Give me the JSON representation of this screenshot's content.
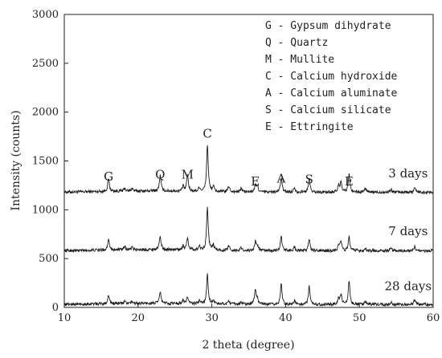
{
  "chart_data": {
    "type": "line",
    "xlabel": "2 theta (degree)",
    "ylabel": "Intensity (counts)",
    "xlim": [
      10,
      60
    ],
    "ylim": [
      0,
      3000
    ],
    "xticks": [
      10,
      20,
      30,
      40,
      50,
      60
    ],
    "yticks": [
      0,
      500,
      1000,
      1500,
      2000,
      2500,
      3000
    ],
    "grid": false,
    "legend_position": "top-right",
    "legend": [
      "G - Gypsum dihydrate",
      "Q - Quartz",
      "M - Mullite",
      "C - Calcium hydroxide",
      "A - Calcium aluminate",
      "S - Calcium silicate",
      "E - Ettringite"
    ],
    "peak_labels": [
      {
        "label": "G",
        "x": 16.0,
        "y": 1300
      },
      {
        "label": "Q",
        "x": 23.0,
        "y": 1320
      },
      {
        "label": "M",
        "x": 26.7,
        "y": 1320
      },
      {
        "label": "C",
        "x": 29.4,
        "y": 1740
      },
      {
        "label": "E",
        "x": 35.9,
        "y": 1250
      },
      {
        "label": "A",
        "x": 39.4,
        "y": 1280
      },
      {
        "label": "S",
        "x": 43.2,
        "y": 1270
      },
      {
        "label": "E",
        "x": 48.6,
        "y": 1250
      }
    ],
    "series": [
      {
        "name": "3 days",
        "baseline": 1180,
        "label_x": 56.6,
        "label_y": 1330,
        "peaks": [
          [
            16.0,
            130
          ],
          [
            18.2,
            30
          ],
          [
            19.2,
            30
          ],
          [
            23.0,
            160
          ],
          [
            26.1,
            50
          ],
          [
            26.7,
            170
          ],
          [
            28.3,
            40
          ],
          [
            29.4,
            480
          ],
          [
            30.2,
            50
          ],
          [
            32.3,
            60
          ],
          [
            34.0,
            40
          ],
          [
            35.9,
            70
          ],
          [
            36.2,
            60
          ],
          [
            39.4,
            150
          ],
          [
            41.2,
            50
          ],
          [
            43.2,
            140
          ],
          [
            47.2,
            70
          ],
          [
            47.5,
            90
          ],
          [
            48.6,
            180
          ],
          [
            50.8,
            40
          ],
          [
            54.3,
            30
          ],
          [
            57.5,
            50
          ]
        ]
      },
      {
        "name": "7 days",
        "baseline": 580,
        "label_x": 56.6,
        "label_y": 740,
        "peaks": [
          [
            16.0,
            120
          ],
          [
            18.2,
            30
          ],
          [
            19.2,
            25
          ],
          [
            23.0,
            140
          ],
          [
            26.1,
            40
          ],
          [
            26.7,
            130
          ],
          [
            28.3,
            40
          ],
          [
            29.4,
            440
          ],
          [
            30.2,
            50
          ],
          [
            32.3,
            50
          ],
          [
            34.0,
            30
          ],
          [
            35.9,
            90
          ],
          [
            36.2,
            50
          ],
          [
            39.4,
            150
          ],
          [
            41.2,
            40
          ],
          [
            43.2,
            120
          ],
          [
            47.2,
            60
          ],
          [
            47.5,
            90
          ],
          [
            48.6,
            140
          ],
          [
            50.8,
            30
          ],
          [
            54.3,
            25
          ],
          [
            57.5,
            40
          ]
        ]
      },
      {
        "name": "28 days",
        "baseline": 30,
        "label_x": 56.6,
        "label_y": 175,
        "peaks": [
          [
            16.0,
            90
          ],
          [
            18.2,
            25
          ],
          [
            19.2,
            20
          ],
          [
            23.0,
            120
          ],
          [
            26.1,
            35
          ],
          [
            26.7,
            70
          ],
          [
            28.3,
            30
          ],
          [
            29.4,
            300
          ],
          [
            30.2,
            40
          ],
          [
            32.3,
            40
          ],
          [
            34.0,
            25
          ],
          [
            35.9,
            160
          ],
          [
            36.2,
            50
          ],
          [
            39.4,
            210
          ],
          [
            41.2,
            40
          ],
          [
            43.2,
            190
          ],
          [
            47.2,
            60
          ],
          [
            47.5,
            100
          ],
          [
            48.6,
            250
          ],
          [
            50.8,
            30
          ],
          [
            54.3,
            20
          ],
          [
            57.5,
            50
          ]
        ]
      }
    ]
  }
}
